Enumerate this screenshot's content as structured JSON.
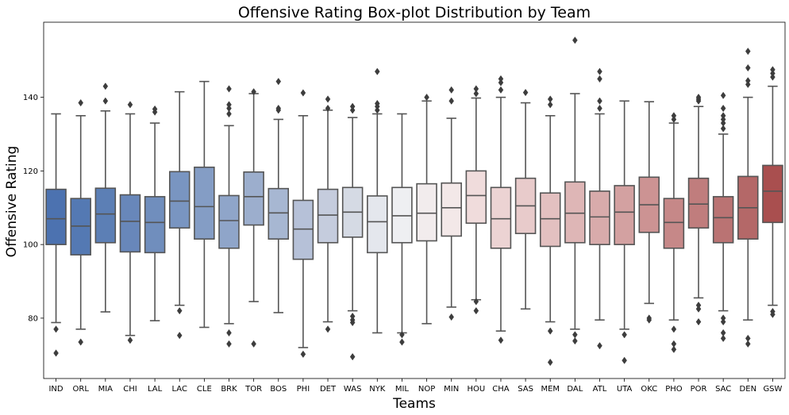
{
  "chart_data": {
    "type": "box",
    "title": "Offensive Rating Box-plot Distribution by Team",
    "xlabel": "Teams",
    "ylabel": "Offensive Rating",
    "ylim": [
      63.6,
      160.4
    ],
    "yticks": [
      80,
      100,
      120,
      140
    ],
    "grid": false,
    "legend": "none",
    "box_stroke": "#555555",
    "series": [
      {
        "team": "IND",
        "color": "#4c72b0",
        "whisker_low": 78.8,
        "q1": 100.0,
        "median": 107.0,
        "q3": 115.0,
        "whisker_high": 135.5,
        "outliers": [
          77.0,
          70.5
        ]
      },
      {
        "team": "ORL",
        "color": "#5479b3",
        "whisker_low": 77.0,
        "q1": 97.2,
        "median": 105.0,
        "q3": 112.5,
        "whisker_high": 135.0,
        "outliers": [
          73.5,
          138.5
        ]
      },
      {
        "team": "MIA",
        "color": "#5c7fb5",
        "whisker_low": 81.7,
        "q1": 100.5,
        "median": 108.3,
        "q3": 115.3,
        "whisker_high": 136.3,
        "outliers": [
          139.0,
          143.0
        ]
      },
      {
        "team": "CHI",
        "color": "#6887ba",
        "whisker_low": 75.3,
        "q1": 98.0,
        "median": 106.3,
        "q3": 113.5,
        "whisker_high": 135.5,
        "outliers": [
          74.0,
          138.0
        ]
      },
      {
        "team": "LAL",
        "color": "#708ebd",
        "whisker_low": 79.3,
        "q1": 97.8,
        "median": 106.0,
        "q3": 113.0,
        "whisker_high": 133.0,
        "outliers": [
          136.0,
          136.8
        ]
      },
      {
        "team": "LAC",
        "color": "#7995c1",
        "whisker_low": 83.5,
        "q1": 104.5,
        "median": 111.8,
        "q3": 119.8,
        "whisker_high": 141.5,
        "outliers": [
          82.0,
          75.3
        ]
      },
      {
        "team": "CLE",
        "color": "#849dc5",
        "whisker_low": 77.5,
        "q1": 101.5,
        "median": 110.3,
        "q3": 121.0,
        "whisker_high": 144.3,
        "outliers": []
      },
      {
        "team": "BRK",
        "color": "#8fa5c9",
        "whisker_low": 78.5,
        "q1": 99.0,
        "median": 106.5,
        "q3": 113.3,
        "whisker_high": 132.3,
        "outliers": [
          76.0,
          73.0,
          135.5,
          137.0,
          138.0,
          142.3
        ]
      },
      {
        "team": "TOR",
        "color": "#9caecd",
        "whisker_low": 84.5,
        "q1": 105.3,
        "median": 113.0,
        "q3": 119.7,
        "whisker_high": 141.0,
        "outliers": [
          73.0,
          141.5
        ]
      },
      {
        "team": "BOS",
        "color": "#a7b7d2",
        "whisker_low": 81.5,
        "q1": 101.5,
        "median": 108.6,
        "q3": 115.2,
        "whisker_high": 134.0,
        "outliers": [
          136.5,
          137.0,
          144.3
        ]
      },
      {
        "team": "PHI",
        "color": "#b6c1d8",
        "whisker_low": 72.0,
        "q1": 96.0,
        "median": 104.2,
        "q3": 112.0,
        "whisker_high": 135.0,
        "outliers": [
          70.2,
          141.2
        ]
      },
      {
        "team": "DET",
        "color": "#c5ccdd",
        "whisker_low": 79.0,
        "q1": 100.5,
        "median": 108.0,
        "q3": 115.0,
        "whisker_high": 136.5,
        "outliers": [
          77.0,
          137.0,
          139.5
        ]
      },
      {
        "team": "WAS",
        "color": "#d5dae4",
        "whisker_low": 82.0,
        "q1": 102.0,
        "median": 108.8,
        "q3": 115.5,
        "whisker_high": 134.5,
        "outliers": [
          80.5,
          79.5,
          78.8,
          69.5,
          136.5,
          137.5
        ]
      },
      {
        "team": "NYK",
        "color": "#e4e7ed",
        "whisker_low": 76.0,
        "q1": 97.8,
        "median": 106.2,
        "q3": 113.2,
        "whisker_high": 135.5,
        "outliers": [
          136.5,
          137.5,
          138.3,
          147.0
        ]
      },
      {
        "team": "MIL",
        "color": "#eeeff2",
        "whisker_low": 76.0,
        "q1": 100.5,
        "median": 107.8,
        "q3": 115.5,
        "whisker_high": 135.5,
        "outliers": [
          75.5,
          73.5
        ]
      },
      {
        "team": "NOP",
        "color": "#f2eced",
        "whisker_low": 78.5,
        "q1": 101.0,
        "median": 108.5,
        "q3": 116.5,
        "whisker_high": 139.0,
        "outliers": [
          140.0
        ]
      },
      {
        "team": "MIN",
        "color": "#f3e8e8",
        "whisker_low": 83.0,
        "q1": 102.3,
        "median": 110.0,
        "q3": 116.7,
        "whisker_high": 134.3,
        "outliers": [
          80.3,
          139.0,
          142.0
        ]
      },
      {
        "team": "HOU",
        "color": "#f0dcdc",
        "whisker_low": 85.0,
        "q1": 105.8,
        "median": 113.3,
        "q3": 120.0,
        "whisker_high": 139.8,
        "outliers": [
          84.5,
          82.0,
          141.0,
          142.3
        ]
      },
      {
        "team": "CHA",
        "color": "#ecd3d3",
        "whisker_low": 76.5,
        "q1": 99.0,
        "median": 107.0,
        "q3": 115.5,
        "whisker_high": 140.0,
        "outliers": [
          74.0,
          142.0,
          144.0,
          145.0
        ]
      },
      {
        "team": "SAS",
        "color": "#e8cbcb",
        "whisker_low": 82.5,
        "q1": 103.0,
        "median": 110.5,
        "q3": 118.0,
        "whisker_high": 138.5,
        "outliers": [
          141.3
        ]
      },
      {
        "team": "MEM",
        "color": "#e3c0c0",
        "whisker_low": 79.0,
        "q1": 99.5,
        "median": 107.0,
        "q3": 114.0,
        "whisker_high": 135.0,
        "outliers": [
          76.5,
          68.0,
          138.0,
          139.5
        ]
      },
      {
        "team": "DAL",
        "color": "#deb6b6",
        "whisker_low": 77.0,
        "q1": 100.5,
        "median": 108.5,
        "q3": 117.0,
        "whisker_high": 141.0,
        "outliers": [
          75.5,
          73.8,
          155.5
        ]
      },
      {
        "team": "ATL",
        "color": "#d8abab",
        "whisker_low": 79.5,
        "q1": 100.0,
        "median": 107.5,
        "q3": 114.5,
        "whisker_high": 135.5,
        "outliers": [
          72.5,
          137.0,
          139.0,
          145.0,
          147.0
        ]
      },
      {
        "team": "UTA",
        "color": "#d3a1a1",
        "whisker_low": 77.0,
        "q1": 100.0,
        "median": 108.8,
        "q3": 116.0,
        "whisker_high": 139.0,
        "outliers": [
          75.5,
          68.5
        ]
      },
      {
        "team": "OKC",
        "color": "#cc9393",
        "whisker_low": 84.0,
        "q1": 103.3,
        "median": 110.8,
        "q3": 118.3,
        "whisker_high": 138.8,
        "outliers": [
          80.0,
          79.5
        ]
      },
      {
        "team": "PHO",
        "color": "#c68888",
        "whisker_low": 79.5,
        "q1": 99.0,
        "median": 106.0,
        "q3": 112.5,
        "whisker_high": 133.0,
        "outliers": [
          77.0,
          73.0,
          71.5,
          134.0,
          135.0
        ]
      },
      {
        "team": "POR",
        "color": "#c07d7d",
        "whisker_low": 85.5,
        "q1": 104.5,
        "median": 111.0,
        "q3": 118.0,
        "whisker_high": 137.5,
        "outliers": [
          83.5,
          82.5,
          79.0,
          139.0,
          139.5,
          140.0
        ]
      },
      {
        "team": "SAC",
        "color": "#ba7373",
        "whisker_low": 82.0,
        "q1": 100.5,
        "median": 107.3,
        "q3": 113.0,
        "whisker_high": 130.0,
        "outliers": [
          80.0,
          79.0,
          76.0,
          74.5,
          131.5,
          133.0,
          134.0,
          135.0,
          137.0,
          140.5
        ]
      },
      {
        "team": "DEN",
        "color": "#b46868",
        "whisker_low": 79.5,
        "q1": 101.5,
        "median": 110.0,
        "q3": 118.5,
        "whisker_high": 140.0,
        "outliers": [
          74.5,
          73.0,
          143.5,
          144.5,
          148.0,
          152.5
        ]
      },
      {
        "team": "GSW",
        "color": "#a94f4f",
        "whisker_low": 83.5,
        "q1": 106.0,
        "median": 114.5,
        "q3": 121.5,
        "whisker_high": 143.0,
        "outliers": [
          81.8,
          81.0,
          145.5,
          146.5,
          147.5
        ]
      }
    ]
  }
}
